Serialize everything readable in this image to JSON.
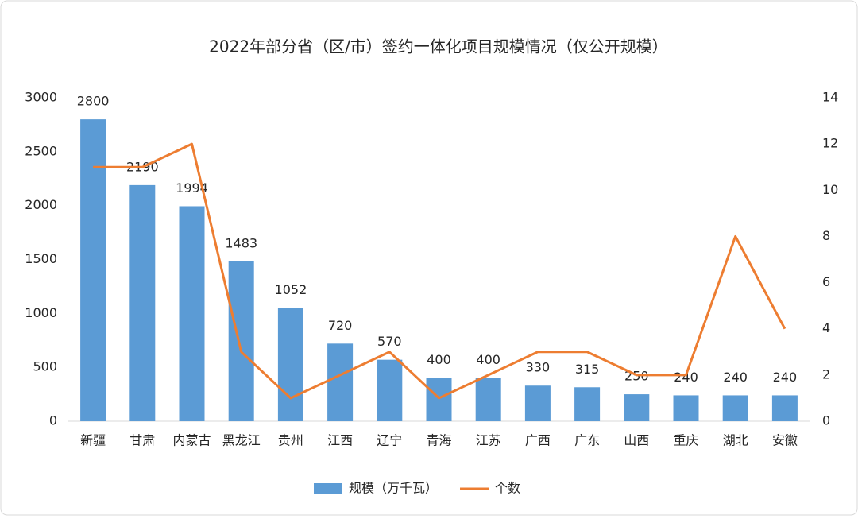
{
  "chart_data": {
    "type": "bar",
    "title": "2022年部分省（区/市）签约一体化项目规模情况（仅公开规模）",
    "categories": [
      "新疆",
      "甘肃",
      "内蒙古",
      "黑龙江",
      "贵州",
      "江西",
      "辽宁",
      "青海",
      "江苏",
      "广西",
      "广东",
      "山西",
      "重庆",
      "湖北",
      "安徽"
    ],
    "series": [
      {
        "name": "规模（万千瓦）",
        "type": "bar",
        "color": "#5b9bd5",
        "values": [
          2800,
          2190,
          1994,
          1483,
          1052,
          720,
          570,
          400,
          400,
          330,
          315,
          250,
          240,
          240,
          240
        ],
        "data_labels": true
      },
      {
        "name": "个数",
        "type": "line",
        "axis": "y2",
        "color": "#ed7d31",
        "values": [
          11,
          11,
          12,
          3,
          1,
          2,
          3,
          1,
          2,
          3,
          3,
          2,
          2,
          8,
          4
        ]
      }
    ],
    "ylim": [
      0,
      3000
    ],
    "yticks": [
      0,
      500,
      1000,
      1500,
      2000,
      2500,
      3000
    ],
    "y2lim": [
      0,
      14
    ],
    "y2ticks": [
      0,
      2,
      4,
      6,
      8,
      10,
      12,
      14
    ],
    "legend": "bottom"
  }
}
